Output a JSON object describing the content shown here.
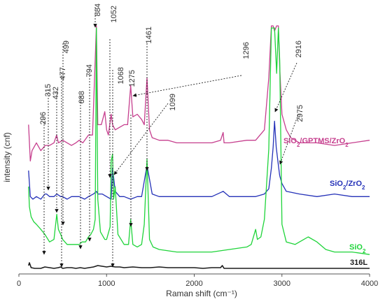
{
  "chart_data": {
    "type": "line",
    "xlabel": "Raman shift (cm⁻¹)",
    "ylabel": "intensity (cnf)",
    "xlim": [
      0,
      4000
    ],
    "ylim": [
      0,
      1
    ],
    "x_ticks": [
      0,
      1000,
      2000,
      3000,
      4000
    ],
    "x_tick_labels": [
      "0",
      "1000",
      "2000",
      "3000",
      "4000"
    ],
    "grid": false,
    "legend": "inline labels at right",
    "series": [
      {
        "name": "SiO₂/GPTMS/ZrO₂",
        "label_text": "SiO2/GPTMS/ZrO2",
        "color": "#c63f8e",
        "x": [
          110,
          130,
          150,
          200,
          250,
          300,
          350,
          400,
          430,
          450,
          500,
          550,
          600,
          650,
          688,
          730,
          794,
          840,
          884,
          900,
          940,
          980,
          1000,
          1020,
          1052,
          1068,
          1099,
          1150,
          1200,
          1240,
          1275,
          1300,
          1350,
          1400,
          1430,
          1461,
          1490,
          1520,
          1600,
          1700,
          1800,
          2000,
          2200,
          2300,
          2330,
          2340,
          2400,
          2600,
          2700,
          2800,
          2850,
          2880,
          2900,
          2916,
          2940,
          2960,
          2975,
          3000,
          3050,
          3100,
          3200,
          3300,
          3400,
          3600,
          3800,
          4000
        ],
        "y": [
          0.62,
          0.48,
          0.52,
          0.55,
          0.52,
          0.54,
          0.54,
          0.55,
          0.58,
          0.55,
          0.56,
          0.55,
          0.54,
          0.55,
          0.56,
          0.55,
          0.58,
          0.58,
          1.0,
          0.62,
          0.62,
          0.67,
          0.6,
          0.58,
          0.66,
          0.62,
          0.6,
          0.61,
          0.62,
          0.62,
          0.77,
          0.65,
          0.66,
          0.64,
          0.62,
          0.8,
          0.6,
          0.57,
          0.56,
          0.56,
          0.55,
          0.55,
          0.55,
          0.56,
          0.59,
          0.55,
          0.55,
          0.56,
          0.56,
          0.6,
          0.8,
          1.0,
          1.0,
          0.98,
          1.0,
          1.0,
          0.84,
          0.66,
          0.6,
          0.57,
          0.55,
          0.55,
          0.55,
          0.54,
          0.55,
          0.56
        ]
      },
      {
        "name": "SiO₂/ZrO₂",
        "label_text": "SiO2/ZrO2",
        "color": "#2431b8",
        "x": [
          110,
          130,
          160,
          200,
          250,
          296,
          315,
          350,
          400,
          432,
          477,
          499,
          550,
          600,
          688,
          750,
          794,
          850,
          884,
          900,
          950,
          1000,
          1052,
          1068,
          1099,
          1150,
          1200,
          1275,
          1350,
          1400,
          1461,
          1520,
          1600,
          1800,
          2000,
          2200,
          2330,
          2400,
          2600,
          2700,
          2800,
          2850,
          2880,
          2900,
          2916,
          2935,
          2960,
          2975,
          3000,
          3050,
          3200,
          3400,
          3600,
          3800,
          4000
        ],
        "y": [
          0.41,
          0.31,
          0.3,
          0.31,
          0.3,
          0.32,
          0.32,
          0.31,
          0.31,
          0.32,
          0.31,
          0.31,
          0.3,
          0.31,
          0.31,
          0.3,
          0.31,
          0.32,
          0.33,
          0.32,
          0.32,
          0.31,
          0.3,
          0.42,
          0.33,
          0.31,
          0.31,
          0.3,
          0.31,
          0.31,
          0.43,
          0.32,
          0.31,
          0.31,
          0.31,
          0.31,
          0.33,
          0.31,
          0.31,
          0.31,
          0.32,
          0.34,
          0.42,
          0.5,
          0.6,
          0.5,
          0.43,
          0.39,
          0.36,
          0.33,
          0.32,
          0.31,
          0.32,
          0.31,
          0.31
        ]
      },
      {
        "name": "SiO₂",
        "label_text": "SiO2",
        "color": "#1fd43a",
        "x": [
          110,
          120,
          140,
          170,
          200,
          250,
          296,
          350,
          400,
          432,
          450,
          477,
          499,
          550,
          600,
          650,
          688,
          720,
          760,
          794,
          820,
          850,
          870,
          884,
          900,
          930,
          980,
          1000,
          1040,
          1052,
          1068,
          1080,
          1099,
          1130,
          1200,
          1250,
          1275,
          1300,
          1350,
          1400,
          1430,
          1461,
          1490,
          1530,
          1600,
          1800,
          2000,
          2200,
          2400,
          2600,
          2650,
          2700,
          2720,
          2760,
          2800,
          2850,
          2880,
          2916,
          2940,
          2960,
          2975,
          3000,
          3050,
          3150,
          3250,
          3300,
          3400,
          3500,
          3600,
          3800,
          4000
        ],
        "y": [
          0.35,
          0.27,
          0.23,
          0.21,
          0.2,
          0.18,
          0.16,
          0.13,
          0.14,
          0.24,
          0.18,
          0.16,
          0.14,
          0.12,
          0.12,
          0.12,
          0.12,
          0.13,
          0.13,
          0.15,
          0.16,
          0.18,
          0.22,
          1.0,
          0.3,
          0.17,
          0.14,
          0.14,
          0.19,
          0.45,
          0.48,
          0.3,
          0.35,
          0.16,
          0.12,
          0.12,
          0.22,
          0.12,
          0.11,
          0.12,
          0.2,
          0.46,
          0.14,
          0.11,
          0.1,
          0.09,
          0.09,
          0.09,
          0.1,
          0.11,
          0.12,
          0.18,
          0.14,
          0.15,
          0.22,
          0.5,
          1.0,
          1.0,
          0.8,
          1.0,
          0.85,
          0.2,
          0.13,
          0.12,
          0.14,
          0.15,
          0.13,
          0.1,
          0.09,
          0.09,
          0.08
        ]
      },
      {
        "name": "316L",
        "label_text": "316L",
        "color": "#1a1a1a",
        "x": [
          110,
          120,
          140,
          180,
          250,
          296,
          350,
          400,
          450,
          477,
          500,
          550,
          600,
          650,
          700,
          750,
          800,
          850,
          900,
          950,
          1000,
          1050,
          1100,
          1150,
          1200,
          1300,
          1400,
          1500,
          1600,
          1700,
          1800,
          1900,
          2000,
          2100,
          2200,
          2300,
          2320,
          2340,
          2400,
          2600,
          2800,
          3000,
          3200,
          3400,
          3600,
          3800,
          4000
        ],
        "y": [
          0.06,
          0.1,
          0.03,
          0.02,
          0.02,
          0.04,
          0.03,
          0.02,
          0.03,
          0.04,
          0.02,
          0.03,
          0.03,
          0.02,
          0.03,
          0.02,
          0.03,
          0.04,
          0.06,
          0.05,
          0.04,
          0.05,
          0.04,
          0.04,
          0.03,
          0.04,
          0.03,
          0.03,
          0.04,
          0.03,
          0.03,
          0.03,
          0.03,
          0.02,
          0.03,
          0.03,
          0.06,
          0.02,
          0.02,
          0.02,
          0.02,
          0.02,
          0.02,
          0.02,
          0.02,
          0.02,
          0.02
        ]
      }
    ],
    "peak_annotations": [
      "296",
      "315",
      "432",
      "477",
      "499",
      "688",
      "794",
      "884",
      "1052",
      "1068",
      "1099",
      "1275",
      "1296",
      "1461",
      "2916",
      "2975"
    ]
  }
}
